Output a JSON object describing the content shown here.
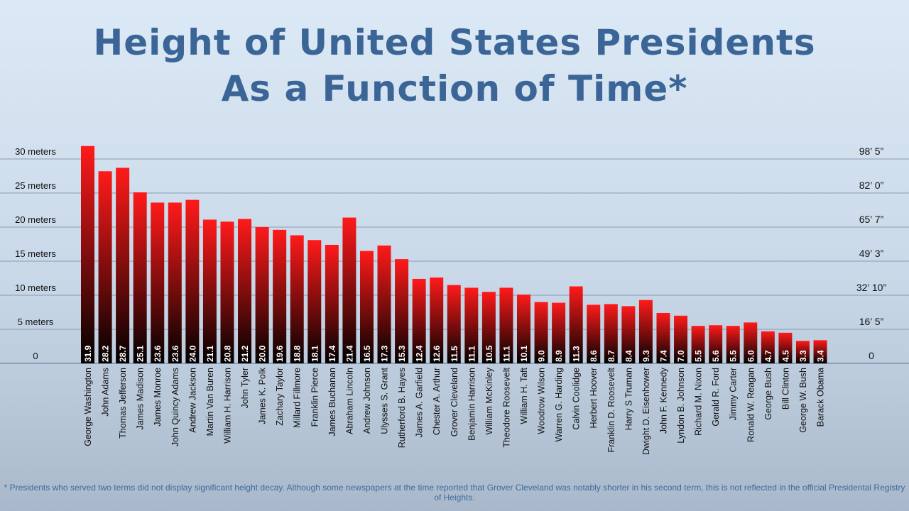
{
  "title_line1": "Height of United States Presidents",
  "title_line2": "As a Function of Time*",
  "footnote": "* Presidents who served two terms did not display significant height decay. Although some newspapers at the time reported that Grover Cleveland was notably shorter in his second term, this is not reflected in the official Presidental Registry of Heights.",
  "colors": {
    "title": "#3b6596",
    "bar_top": "#ff1a1a",
    "bar_bottom": "#000000",
    "grid": "#8a9bb2",
    "axis_text": "#111111"
  },
  "chart_data": {
    "type": "bar",
    "title": "Height of United States Presidents As a Function of Time*",
    "ylim": [
      0,
      30
    ],
    "y_ticks_left": [
      {
        "value": 0,
        "label": "0"
      },
      {
        "value": 5,
        "label": "5 meters"
      },
      {
        "value": 10,
        "label": "10 meters"
      },
      {
        "value": 15,
        "label": "15 meters"
      },
      {
        "value": 20,
        "label": "20 meters"
      },
      {
        "value": 25,
        "label": "25 meters"
      },
      {
        "value": 30,
        "label": "30 meters"
      }
    ],
    "y_ticks_right": [
      {
        "value": 0,
        "label": "0"
      },
      {
        "value": 5,
        "label": "16’ 5”"
      },
      {
        "value": 10,
        "label": "32’ 10”"
      },
      {
        "value": 15,
        "label": "49’ 3”"
      },
      {
        "value": 20,
        "label": "65’ 7”"
      },
      {
        "value": 25,
        "label": "82’ 0”"
      },
      {
        "value": 30,
        "label": "98’ 5”"
      }
    ],
    "grid": true,
    "categories": [
      "George Washington",
      "John Adams",
      "Thomas Jefferson",
      "James Madison",
      "James Monroe",
      "John Quincy Adams",
      "Andrew Jackson",
      "Martin Van Buren",
      "William H. Harrison",
      "John Tyler",
      "James K. Polk",
      "Zachary Taylor",
      "Millard Fillmore",
      "Franklin Pierce",
      "James Buchanan",
      "Abraham Lincoln",
      "Andrew Johnson",
      "Ulysses S. Grant",
      "Rutherford B. Hayes",
      "James A. Garfield",
      "Chester A. Arthur",
      "Grover Cleveland",
      "Benjamin Harrison",
      "William McKinley",
      "Theodore Roosevelt",
      "William H. Taft",
      "Woodrow Wilson",
      "Warren G. Harding",
      "Calvin Coolidge",
      "Herbert Hoover",
      "Franklin D. Roosevelt",
      "Harry S Truman",
      "Dwight D. Eisenhower",
      "John F. Kennedy",
      "Lyndon B. Johnson",
      "Richard M. Nixon",
      "Gerald R. Ford",
      "Jimmy Carter",
      "Ronald W. Reagan",
      "George Bush",
      "Bill Clinton",
      "George W. Bush",
      "Barack Obama"
    ],
    "values": [
      31.9,
      28.2,
      28.7,
      25.1,
      23.6,
      23.6,
      24.0,
      21.1,
      20.8,
      21.2,
      20.0,
      19.6,
      18.8,
      18.1,
      17.4,
      21.4,
      16.5,
      17.3,
      15.3,
      12.4,
      12.6,
      11.5,
      11.1,
      10.5,
      11.1,
      10.1,
      9.0,
      8.9,
      11.3,
      8.6,
      8.7,
      8.4,
      9.3,
      7.4,
      7.0,
      5.5,
      5.6,
      5.5,
      6.0,
      4.7,
      4.5,
      3.3,
      3.4
    ],
    "value_labels": [
      "31.9",
      "28.2",
      "28.7",
      "25.1",
      "23.6",
      "23.6",
      "24.0",
      "21.1",
      "20.8",
      "21.2",
      "20.0",
      "19.6",
      "18.8",
      "18.1",
      "17.4",
      "21.4",
      "16.5",
      "17.3",
      "15.3",
      "12.4",
      "12.6",
      "11.5",
      "11.1",
      "10.5",
      "11.1",
      "10.1",
      "9.0",
      "8.9",
      "11.3",
      "8.6",
      "8.7",
      "8.4",
      "9.3",
      "7.4",
      "7.0",
      "5.5",
      "5.6",
      "5.5",
      "6.0",
      "4.7",
      "4.5",
      "3.3",
      "3.4"
    ]
  }
}
